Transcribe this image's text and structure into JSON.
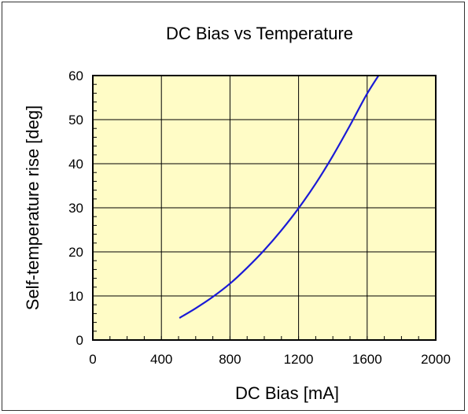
{
  "chart_data": {
    "type": "line",
    "title": "DC Bias vs Temperature",
    "xlabel": "DC Bias [mA]",
    "ylabel": "Self-temperature rise [deg]",
    "xlim": [
      0,
      2000
    ],
    "ylim": [
      0,
      60
    ],
    "x_ticks": [
      0,
      400,
      800,
      1200,
      1600,
      2000
    ],
    "y_ticks": [
      0,
      10,
      20,
      30,
      40,
      50,
      60
    ],
    "grid": true,
    "legend": "none",
    "colors": {
      "plot_background": "#fffcc6",
      "line": "#1a1ad6",
      "grid": "#000000"
    },
    "series": [
      {
        "x": [
          505,
          600,
          700,
          800,
          900,
          1000,
          1100,
          1200,
          1300,
          1400,
          1500,
          1600,
          1700
        ],
        "values": [
          5,
          7.2,
          9.8,
          12.8,
          16.4,
          20.4,
          24.9,
          29.9,
          35.5,
          41.8,
          48.7,
          55.9,
          62
        ]
      }
    ]
  }
}
